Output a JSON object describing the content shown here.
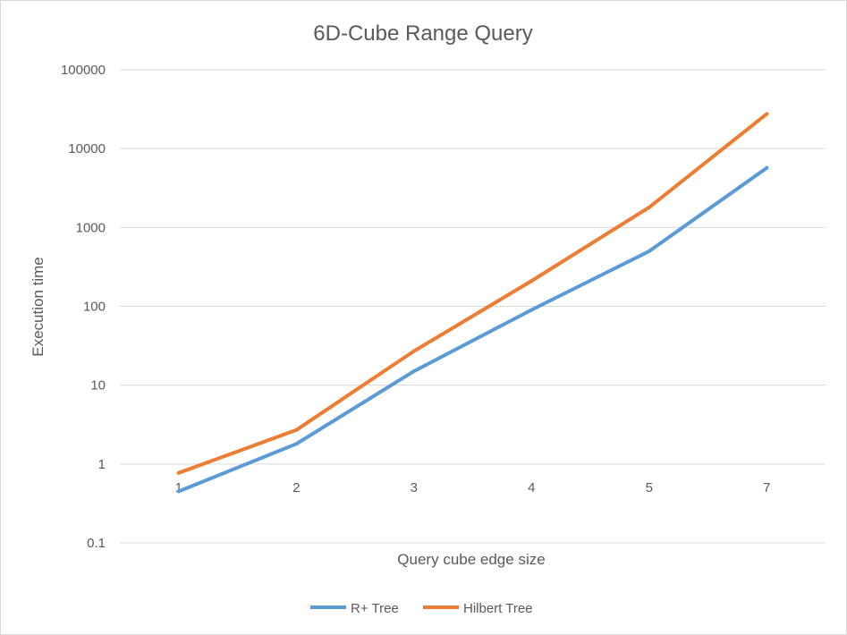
{
  "chart_data": {
    "type": "line",
    "title": "6D-Cube Range Query",
    "xlabel": "Query cube edge size",
    "ylabel": "Execution time",
    "y_scale": "log",
    "ylim": [
      0.1,
      100000
    ],
    "yticks": [
      "0.1",
      "1",
      "10",
      "100",
      "1000",
      "10000",
      "100000"
    ],
    "categories": [
      "1",
      "2",
      "3",
      "4",
      "5",
      "7"
    ],
    "series": [
      {
        "name": "R+ Tree",
        "color": "#5b9bd5",
        "values": [
          0.45,
          1.8,
          15,
          90,
          500,
          5700
        ]
      },
      {
        "name": "Hilbert Tree",
        "color": "#ed7d31",
        "values": [
          0.77,
          2.7,
          27,
          210,
          1800,
          27500
        ]
      }
    ],
    "grid": "horizontal",
    "legend_position": "bottom"
  }
}
